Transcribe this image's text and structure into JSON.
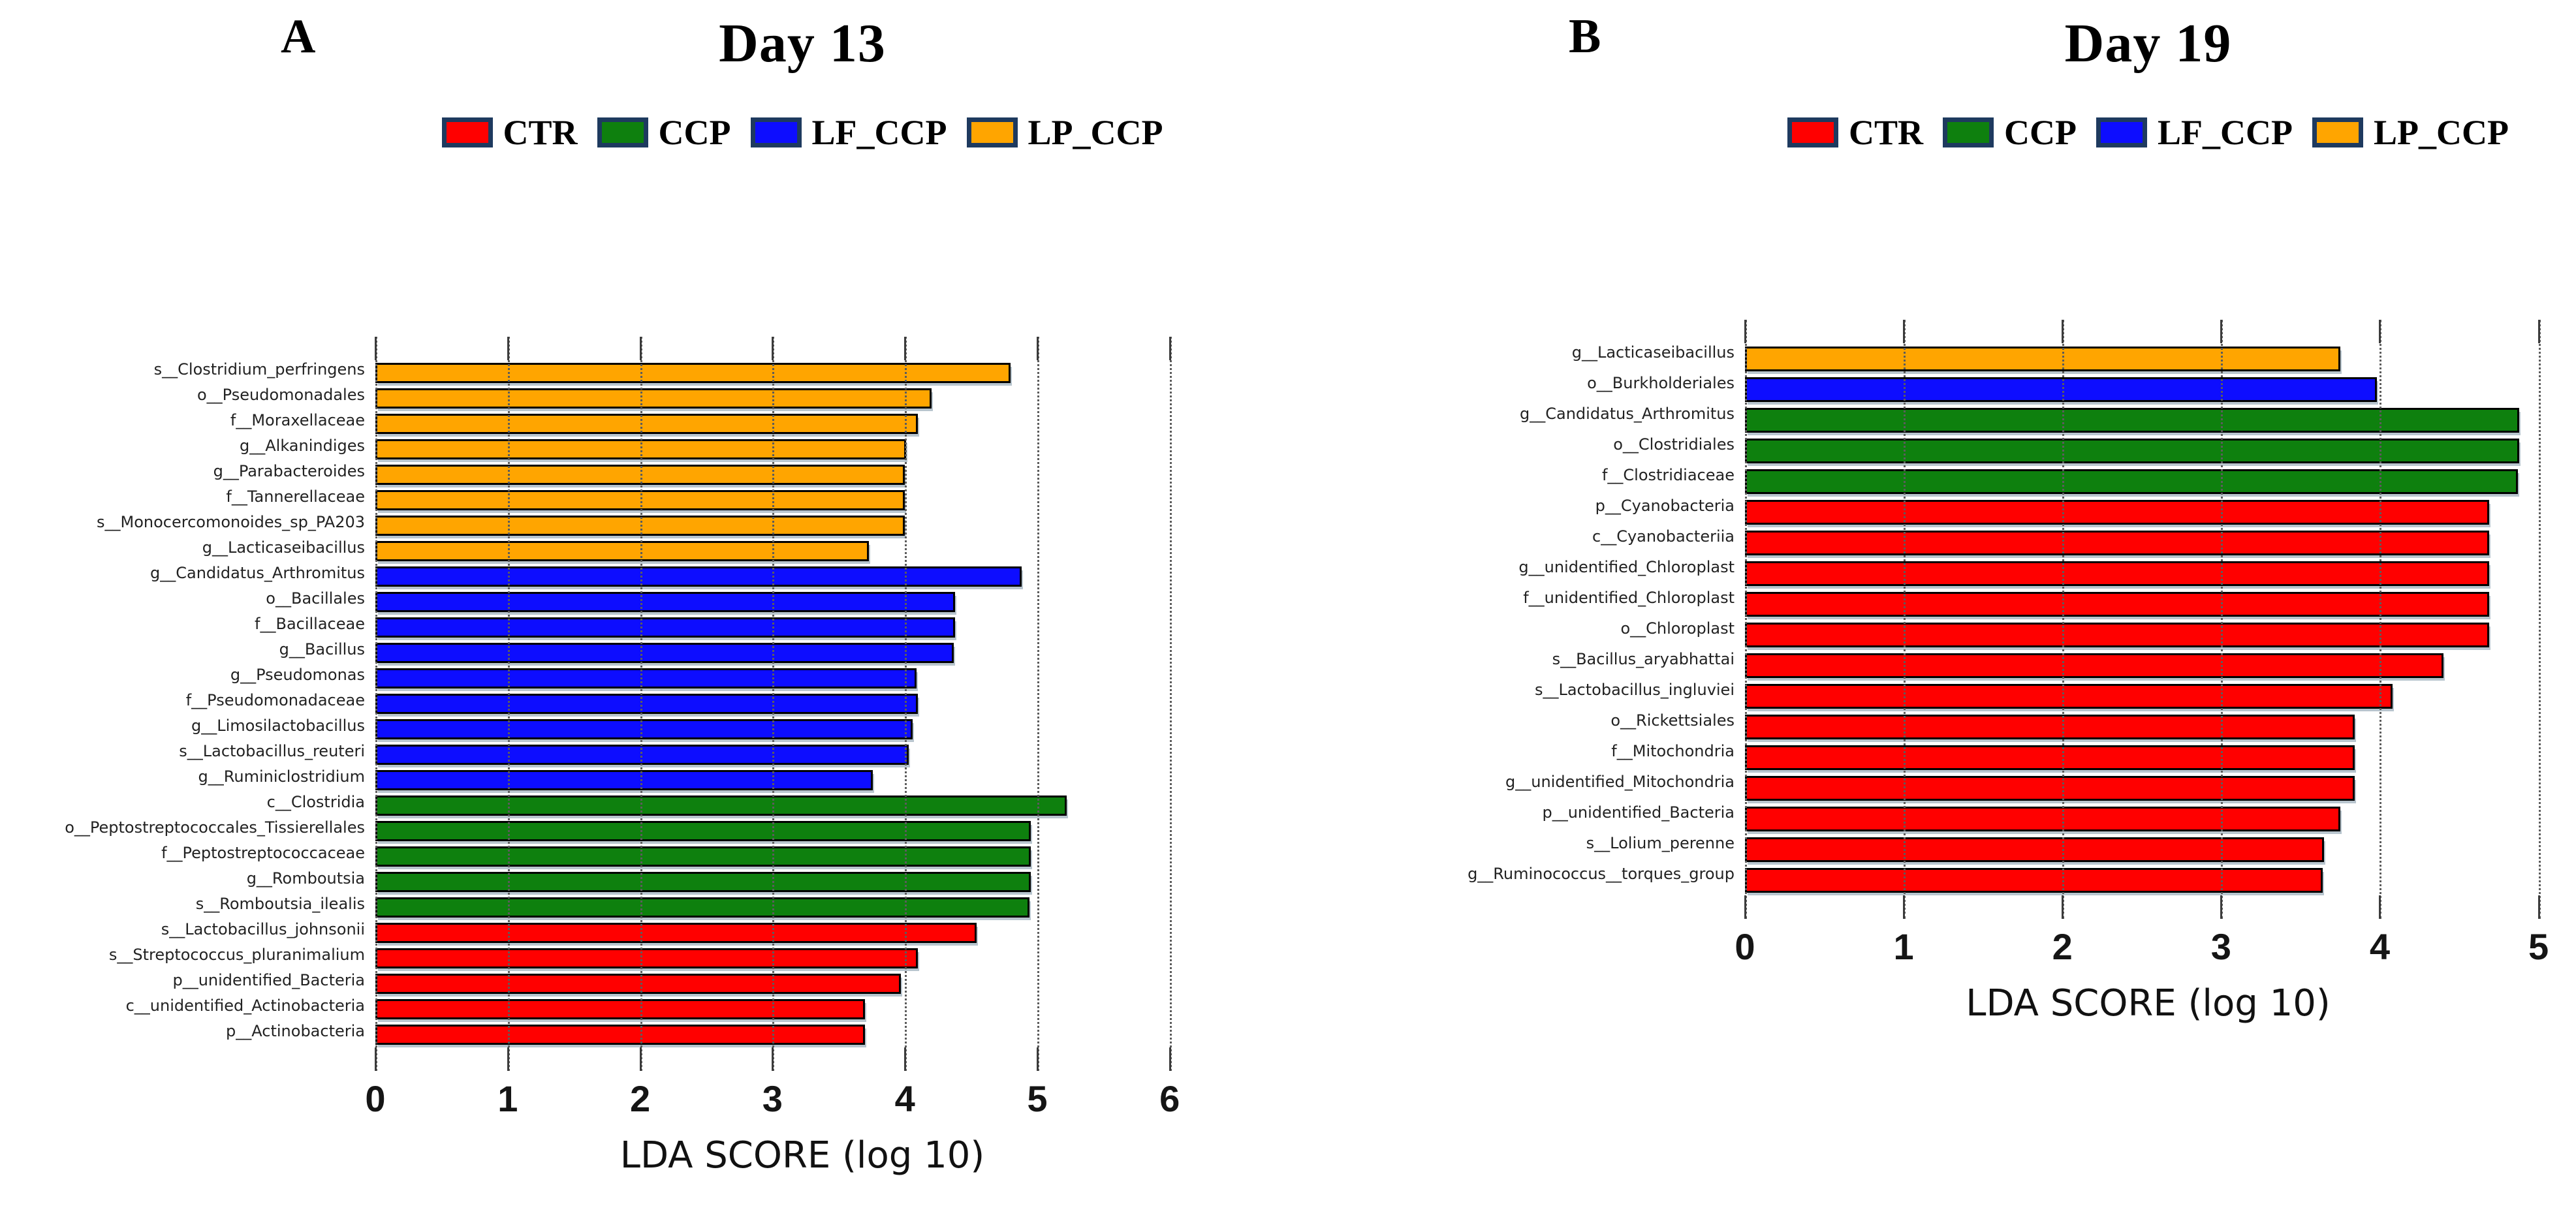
{
  "figure": {
    "background": "#ffffff",
    "group_colors": {
      "CTR": "#ff0000",
      "CCP": "#0e800e",
      "LF_CCP": "#0d0dff",
      "LP_CCP": "#ffa500"
    },
    "legend_swatch_border": "#1e3a5f"
  },
  "chart_data": [
    {
      "type": "bar",
      "orientation": "horizontal",
      "panel_label": "A",
      "title": "Day 13",
      "xlabel": "LDA SCORE (log 10)",
      "xlim": [
        0,
        6.45
      ],
      "xticks": [
        0,
        1,
        2,
        3,
        4,
        5,
        6
      ],
      "grid": "dotted-vertical",
      "legend_position": "top",
      "legend": [
        {
          "name": "CTR",
          "color": "#ff0000"
        },
        {
          "name": "CCP",
          "color": "#0e800e"
        },
        {
          "name": "LF_CCP",
          "color": "#0d0dff"
        },
        {
          "name": "LP_CCP",
          "color": "#ffa500"
        }
      ],
      "bars": [
        {
          "category": "s__Clostridium_perfringens",
          "group": "LP_CCP",
          "value": 4.8
        },
        {
          "category": "o__Pseudomonadales",
          "group": "LP_CCP",
          "value": 4.2
        },
        {
          "category": "f__Moraxellaceae",
          "group": "LP_CCP",
          "value": 4.1
        },
        {
          "category": "g__Alkanindiges",
          "group": "LP_CCP",
          "value": 4.01
        },
        {
          "category": "g__Parabacteroides",
          "group": "LP_CCP",
          "value": 4.0
        },
        {
          "category": "f__Tannerellaceae",
          "group": "LP_CCP",
          "value": 4.0
        },
        {
          "category": "s__Monocercomonoides_sp_PA203",
          "group": "LP_CCP",
          "value": 4.0
        },
        {
          "category": "g__Lacticaseibacillus",
          "group": "LP_CCP",
          "value": 3.73
        },
        {
          "category": "g__Candidatus_Arthromitus",
          "group": "LF_CCP",
          "value": 4.88
        },
        {
          "category": "o__Bacillales",
          "group": "LF_CCP",
          "value": 4.38
        },
        {
          "category": "f__Bacillaceae",
          "group": "LF_CCP",
          "value": 4.38
        },
        {
          "category": "g__Bacillus",
          "group": "LF_CCP",
          "value": 4.37
        },
        {
          "category": "g__Pseudomonas",
          "group": "LF_CCP",
          "value": 4.09
        },
        {
          "category": "f__Pseudomonadaceae",
          "group": "LF_CCP",
          "value": 4.1
        },
        {
          "category": "g__Limosilactobacillus",
          "group": "LF_CCP",
          "value": 4.06
        },
        {
          "category": "s__Lactobacillus_reuteri",
          "group": "LF_CCP",
          "value": 4.03
        },
        {
          "category": "g__Ruminiclostridium",
          "group": "LF_CCP",
          "value": 3.76
        },
        {
          "category": "c__Clostridia",
          "group": "CCP",
          "value": 5.22
        },
        {
          "category": "o__Peptostreptococcales_Tissierellales",
          "group": "CCP",
          "value": 4.95
        },
        {
          "category": "f__Peptostreptococcaceae",
          "group": "CCP",
          "value": 4.95
        },
        {
          "category": "g__Romboutsia",
          "group": "CCP",
          "value": 4.95
        },
        {
          "category": "s__Romboutsia_ilealis",
          "group": "CCP",
          "value": 4.94
        },
        {
          "category": "s__Lactobacillus_johnsonii",
          "group": "CTR",
          "value": 4.54
        },
        {
          "category": "s__Streptococcus_pluranimalium",
          "group": "CTR",
          "value": 4.1
        },
        {
          "category": "p__unidentified_Bacteria",
          "group": "CTR",
          "value": 3.97
        },
        {
          "category": "c__unidentified_Actinobacteria",
          "group": "CTR",
          "value": 3.7
        },
        {
          "category": "p__Actinobacteria",
          "group": "CTR",
          "value": 3.7
        }
      ]
    },
    {
      "type": "bar",
      "orientation": "horizontal",
      "panel_label": "B",
      "title": "Day 19",
      "xlabel": "LDA SCORE (log 10)",
      "xlim": [
        0,
        5.08
      ],
      "xticks": [
        0,
        1,
        2,
        3,
        4,
        5
      ],
      "grid": "dotted-vertical",
      "legend_position": "top",
      "legend": [
        {
          "name": "CTR",
          "color": "#ff0000"
        },
        {
          "name": "CCP",
          "color": "#0e800e"
        },
        {
          "name": "LF_CCP",
          "color": "#0d0dff"
        },
        {
          "name": "LP_CCP",
          "color": "#ffa500"
        }
      ],
      "bars": [
        {
          "category": "g__Lacticaseibacillus",
          "group": "LP_CCP",
          "value": 3.75
        },
        {
          "category": "o__Burkholderiales",
          "group": "LF_CCP",
          "value": 3.98
        },
        {
          "category": "g__Candidatus_Arthromitus",
          "group": "CCP",
          "value": 4.88
        },
        {
          "category": "o__Clostridiales",
          "group": "CCP",
          "value": 4.88
        },
        {
          "category": "f__Clostridiaceae",
          "group": "CCP",
          "value": 4.87
        },
        {
          "category": "p__Cyanobacteria",
          "group": "CTR",
          "value": 4.69
        },
        {
          "category": "c__Cyanobacteriia",
          "group": "CTR",
          "value": 4.69
        },
        {
          "category": "g__unidentified_Chloroplast",
          "group": "CTR",
          "value": 4.69
        },
        {
          "category": "f__unidentified_Chloroplast",
          "group": "CTR",
          "value": 4.69
        },
        {
          "category": "o__Chloroplast",
          "group": "CTR",
          "value": 4.69
        },
        {
          "category": "s__Bacillus_aryabhattai",
          "group": "CTR",
          "value": 4.4
        },
        {
          "category": "s__Lactobacillus_ingluviei",
          "group": "CTR",
          "value": 4.08
        },
        {
          "category": "o__Rickettsiales",
          "group": "CTR",
          "value": 3.84
        },
        {
          "category": "f__Mitochondria",
          "group": "CTR",
          "value": 3.84
        },
        {
          "category": "g__unidentified_Mitochondria",
          "group": "CTR",
          "value": 3.84
        },
        {
          "category": "p__unidentified_Bacteria",
          "group": "CTR",
          "value": 3.75
        },
        {
          "category": "s__Lolium_perenne",
          "group": "CTR",
          "value": 3.65
        },
        {
          "category": "g__Ruminococcus__torques_group",
          "group": "CTR",
          "value": 3.64
        }
      ]
    }
  ]
}
